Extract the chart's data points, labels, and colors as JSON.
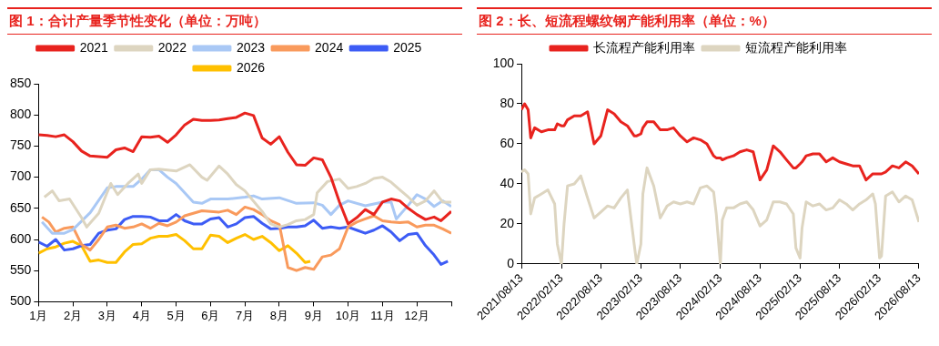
{
  "chart_data": [
    {
      "type": "line",
      "title": "图 1：合计产量季节性变化（单位：万吨）",
      "legend": "top",
      "xlim": [
        1,
        13
      ],
      "xticks": [
        {
          "value": 1,
          "label": "1月"
        },
        {
          "value": 2,
          "label": "2月"
        },
        {
          "value": 3,
          "label": "3月"
        },
        {
          "value": 4,
          "label": "4月"
        },
        {
          "value": 5,
          "label": "5月"
        },
        {
          "value": 6,
          "label": "6月"
        },
        {
          "value": 7,
          "label": "7月"
        },
        {
          "value": 8,
          "label": "8月"
        },
        {
          "value": 9,
          "label": "9月"
        },
        {
          "value": 10,
          "label": "10月"
        },
        {
          "value": 11,
          "label": "11月"
        },
        {
          "value": 12,
          "label": "12月"
        },
        {
          "value": 13,
          "label": null
        }
      ],
      "ylim": [
        500,
        850
      ],
      "yticks": [
        500,
        550,
        600,
        650,
        700,
        750,
        800,
        850
      ],
      "series": [
        {
          "name": "2021",
          "color": "#e8231e",
          "x": [
            1,
            1.25,
            1.5,
            1.75,
            2,
            2.25,
            2.5,
            2.75,
            3,
            3.25,
            3.5,
            3.75,
            4,
            4.25,
            4.5,
            4.75,
            5,
            5.25,
            5.5,
            5.75,
            6,
            6.25,
            6.5,
            6.75,
            7,
            7.25,
            7.5,
            7.75,
            8,
            8.25,
            8.5,
            8.75,
            9,
            9.25,
            9.5,
            9.75,
            10,
            10.25,
            10.5,
            10.75,
            11,
            11.25,
            11.5,
            11.75,
            12,
            12.25,
            12.5,
            12.7,
            13
          ],
          "values": [
            768,
            767,
            765,
            768,
            757,
            742,
            734,
            733,
            732,
            744,
            747,
            741,
            765,
            764,
            766,
            756,
            768,
            784,
            793,
            791,
            791,
            792,
            794,
            796,
            803,
            799,
            763,
            753,
            765,
            740,
            720,
            719,
            731,
            728,
            700,
            660,
            625,
            635,
            648,
            640,
            660,
            665,
            662,
            650,
            640,
            632,
            636,
            630,
            645
          ]
        },
        {
          "name": "2022",
          "color": "#ddd5c0",
          "x": [
            1.17,
            1.4,
            1.6,
            1.9,
            2.25,
            2.4,
            2.75,
            3.1,
            3.3,
            3.6,
            3.9,
            4,
            4.25,
            4.5,
            5,
            5.4,
            5.75,
            5.9,
            6.25,
            6.5,
            6.75,
            7,
            7.5,
            7.75,
            8,
            8.25,
            8.5,
            8.75,
            9,
            9.1,
            9.4,
            9.75,
            10,
            10.25,
            10.5,
            10.75,
            11,
            11.25,
            11.5,
            11.75,
            12,
            12.25,
            12.5,
            12.75,
            13
          ],
          "values": [
            668,
            678,
            662,
            665,
            635,
            620,
            642,
            690,
            672,
            690,
            705,
            690,
            712,
            713,
            710,
            720,
            700,
            695,
            718,
            705,
            688,
            678,
            645,
            625,
            620,
            624,
            630,
            632,
            640,
            675,
            693,
            697,
            682,
            685,
            690,
            698,
            700,
            692,
            680,
            668,
            655,
            662,
            678,
            660,
            660
          ]
        },
        {
          "name": "2023",
          "color": "#a9c8f5",
          "x": [
            1.1,
            1.4,
            1.75,
            2,
            2.5,
            3,
            3.25,
            3.75,
            4,
            4.25,
            4.5,
            4.75,
            5,
            5.25,
            5.5,
            5.75,
            6,
            6.5,
            7,
            7.25,
            7.5,
            8,
            8.5,
            9,
            9.25,
            9.5,
            9.75,
            10,
            10.5,
            11,
            11.25,
            11.4,
            11.75,
            12,
            12.25,
            12.5,
            12.75,
            13
          ],
          "values": [
            628,
            610,
            610,
            616,
            643,
            683,
            685,
            685,
            697,
            712,
            712,
            700,
            690,
            675,
            660,
            658,
            665,
            665,
            668,
            670,
            665,
            667,
            658,
            659,
            655,
            640,
            655,
            662,
            654,
            660,
            660,
            633,
            655,
            672,
            665,
            653,
            662,
            653
          ]
        },
        {
          "name": "2024",
          "color": "#f99a5c",
          "x": [
            1.1,
            1.3,
            1.5,
            1.75,
            2,
            2.25,
            2.5,
            2.75,
            3,
            3.25,
            3.5,
            3.75,
            4,
            4.25,
            4.5,
            4.75,
            5,
            5.25,
            5.5,
            5.75,
            6,
            6.25,
            6.5,
            6.75,
            7,
            7.25,
            7.5,
            7.75,
            8,
            8.25,
            8.5,
            8.75,
            9,
            9.25,
            9.5,
            9.75,
            10,
            10.25,
            10.5,
            10.75,
            11,
            11.25,
            11.5,
            11.75,
            12,
            12.25,
            12.5,
            12.75,
            13
          ],
          "values": [
            636,
            628,
            612,
            618,
            620,
            592,
            583,
            600,
            620,
            623,
            618,
            620,
            625,
            618,
            626,
            622,
            628,
            638,
            642,
            646,
            645,
            644,
            647,
            640,
            652,
            648,
            640,
            630,
            624,
            555,
            550,
            555,
            552,
            572,
            575,
            585,
            620,
            628,
            633,
            638,
            630,
            628,
            627,
            628,
            620,
            623,
            623,
            617,
            610
          ]
        },
        {
          "name": "2025",
          "color": "#3d5cf5",
          "x": [
            1,
            1.25,
            1.5,
            1.75,
            2,
            2.25,
            2.5,
            2.75,
            3,
            3.25,
            3.5,
            3.75,
            4,
            4.25,
            4.5,
            4.75,
            5,
            5.25,
            5.5,
            5.75,
            6,
            6.25,
            6.5,
            6.75,
            7,
            7.25,
            7.5,
            7.75,
            8,
            8.25,
            8.5,
            8.75,
            9,
            9.25,
            9.5,
            9.75,
            10,
            10.25,
            10.5,
            10.75,
            11,
            11.25,
            11.5,
            11.75,
            12,
            12.25,
            12.5,
            12.7,
            12.9
          ],
          "values": [
            596,
            589,
            600,
            583,
            585,
            590,
            592,
            610,
            615,
            617,
            632,
            637,
            637,
            636,
            630,
            630,
            640,
            630,
            625,
            625,
            633,
            635,
            620,
            625,
            635,
            637,
            626,
            617,
            618,
            620,
            620,
            622,
            631,
            618,
            620,
            618,
            620,
            615,
            610,
            615,
            622,
            612,
            598,
            608,
            610,
            590,
            575,
            560,
            565
          ]
        },
        {
          "name": "2026",
          "color": "#ffc000",
          "x": [
            1,
            1.25,
            1.5,
            1.75,
            2,
            2.25,
            2.5,
            2.75,
            3,
            3.25,
            3.5,
            3.75,
            4,
            4.25,
            4.5,
            4.75,
            5,
            5.25,
            5.5,
            5.75,
            6,
            6.25,
            6.5,
            6.75,
            7,
            7.25,
            7.5,
            7.75,
            8,
            8.25,
            8.5,
            8.75,
            8.9
          ],
          "values": [
            578,
            585,
            588,
            594,
            597,
            590,
            565,
            567,
            563,
            563,
            580,
            592,
            593,
            602,
            605,
            605,
            608,
            598,
            585,
            585,
            607,
            605,
            595,
            602,
            608,
            600,
            605,
            595,
            582,
            590,
            578,
            563,
            565
          ]
        }
      ]
    },
    {
      "type": "line",
      "title": "图 2：长、短流程螺纹钢产能利用率（单位：%）",
      "legend": "top",
      "xlim": [
        "2021-08-13",
        "2026-08-13"
      ],
      "xticks": [
        {
          "value": "2021-08-13",
          "label": "2021/08/13"
        },
        {
          "value": "2022-02-13",
          "label": "2022/02/13"
        },
        {
          "value": "2022-08-13",
          "label": "2022/08/13"
        },
        {
          "value": "2023-02-13",
          "label": "2023/02/13"
        },
        {
          "value": "2023-08-13",
          "label": "2023/08/13"
        },
        {
          "value": "2024-02-13",
          "label": "2024/02/13"
        },
        {
          "value": "2024-08-13",
          "label": "2024/08/13"
        },
        {
          "value": "2025-02-13",
          "label": "2025/02/13"
        },
        {
          "value": "2025-08-13",
          "label": "2025/08/13"
        },
        {
          "value": "2026-02-13",
          "label": "2026/02/13"
        },
        {
          "value": "2026-08-13",
          "label": "2026/08/13"
        }
      ],
      "ylim": [
        0,
        100
      ],
      "yticks": [
        0,
        20,
        40,
        60,
        80,
        100
      ],
      "x": [
        "2021-08-13",
        "2021-08-28",
        "2021-09-13",
        "2021-09-25",
        "2021-10-13",
        "2021-11-13",
        "2021-12-13",
        "2022-01-13",
        "2022-01-25",
        "2022-02-13",
        "2022-02-25",
        "2022-03-13",
        "2022-04-13",
        "2022-05-13",
        "2022-06-13",
        "2022-07-13",
        "2022-08-13",
        "2022-09-13",
        "2022-10-13",
        "2022-11-13",
        "2022-12-13",
        "2023-01-13",
        "2023-01-25",
        "2023-02-13",
        "2023-02-22",
        "2023-03-13",
        "2023-04-13",
        "2023-05-13",
        "2023-06-13",
        "2023-07-13",
        "2023-08-13",
        "2023-09-13",
        "2023-10-13",
        "2023-11-13",
        "2023-12-13",
        "2024-01-13",
        "2024-01-25",
        "2024-02-13",
        "2024-02-22",
        "2024-03-13",
        "2024-04-13",
        "2024-05-13",
        "2024-06-13",
        "2024-07-13",
        "2024-08-13",
        "2024-09-13",
        "2024-10-13",
        "2024-11-13",
        "2024-12-13",
        "2025-01-13",
        "2025-01-25",
        "2025-02-13",
        "2025-02-22",
        "2025-03-13",
        "2025-04-13",
        "2025-05-13",
        "2025-06-13",
        "2025-07-13",
        "2025-08-13",
        "2025-09-13",
        "2025-10-13",
        "2025-11-13",
        "2025-12-13",
        "2026-01-13",
        "2026-01-25",
        "2026-02-13",
        "2026-02-22",
        "2026-03-13",
        "2026-04-13",
        "2026-05-13",
        "2026-06-13",
        "2026-07-13",
        "2026-08-13"
      ],
      "series": [
        {
          "name": "长流程产能利用率",
          "color": "#e8231e",
          "values": [
            77,
            80,
            77,
            63,
            68,
            66,
            67,
            67,
            70,
            69,
            69,
            72,
            74,
            74,
            76,
            60,
            64,
            77,
            75,
            71,
            69,
            64,
            64,
            65,
            68,
            71,
            71,
            67,
            67,
            68,
            64,
            61,
            63,
            62,
            60,
            54,
            53,
            53,
            52,
            53,
            54,
            56,
            57,
            56,
            42,
            47,
            59,
            56,
            52,
            48,
            48,
            50,
            51,
            54,
            55,
            55,
            51,
            53,
            51,
            50,
            49,
            49,
            42,
            45,
            45,
            45,
            45,
            46,
            49,
            48,
            51,
            49,
            45
          ]
        },
        {
          "name": "短流程产能利用率",
          "color": "#ddd5c0",
          "values": [
            46,
            47,
            45,
            25,
            33,
            35,
            37,
            30,
            10,
            0,
            20,
            39,
            40,
            44,
            33,
            23,
            26,
            29,
            28,
            33,
            37,
            10,
            0,
            10,
            35,
            48,
            39,
            23,
            29,
            31,
            30,
            31,
            30,
            38,
            39,
            36,
            25,
            0,
            22,
            28,
            28,
            30,
            31,
            27,
            19,
            22,
            31,
            31,
            30,
            25,
            8,
            3,
            18,
            31,
            29,
            30,
            27,
            28,
            32,
            30,
            27,
            30,
            32,
            35,
            30,
            3,
            4,
            34,
            36,
            31,
            34,
            32,
            21
          ]
        }
      ]
    }
  ]
}
